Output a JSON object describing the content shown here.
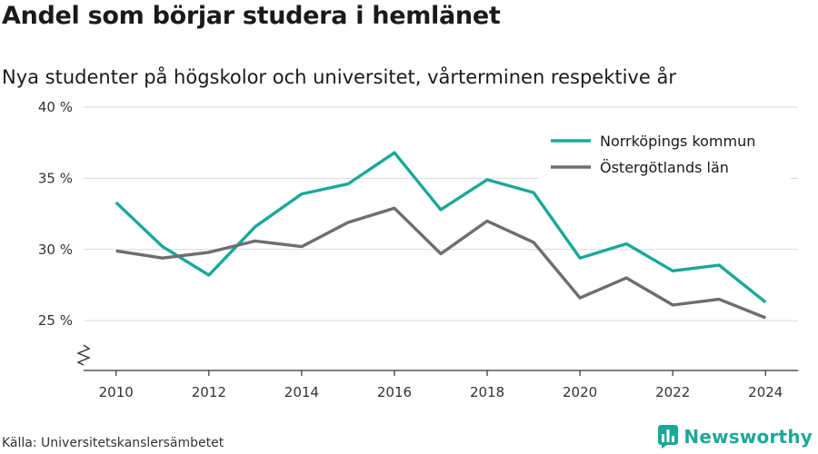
{
  "header": {
    "title": "Andel som börjar studera i hemlänet",
    "subtitle": "Nya studenter på högskolor och universitet, vårterminen respektive år"
  },
  "footer": {
    "source": "Källa: Universitetskanslersämbetet",
    "brand": "Newsworthy",
    "brand_icon": "bar-chart-logo-icon"
  },
  "colors": {
    "norrkoping": "#1aa89a",
    "ostergotland": "#6d6d72",
    "grid": "#d9d9d9",
    "axis": "#333333",
    "brand": "#1aa89a"
  },
  "chart_data": {
    "type": "line",
    "x": [
      2010,
      2011,
      2012,
      2013,
      2014,
      2015,
      2016,
      2017,
      2018,
      2019,
      2020,
      2021,
      2022,
      2023,
      2024
    ],
    "series": [
      {
        "name": "Norrköpings kommun",
        "values": [
          33.3,
          30.2,
          28.2,
          31.6,
          33.9,
          34.6,
          36.8,
          32.8,
          34.9,
          34.0,
          29.4,
          30.4,
          28.5,
          28.9,
          26.3
        ]
      },
      {
        "name": "Östergötlands län",
        "values": [
          29.9,
          29.4,
          29.8,
          30.6,
          30.2,
          31.9,
          32.9,
          29.7,
          32.0,
          30.5,
          26.6,
          28.0,
          26.1,
          26.5,
          25.2
        ]
      }
    ],
    "yticks": [
      25,
      30,
      35,
      40
    ],
    "ytick_labels": [
      "25 %",
      "30 %",
      "35 %",
      "40 %"
    ],
    "xticks": [
      2010,
      2012,
      2014,
      2016,
      2018,
      2020,
      2022,
      2024
    ],
    "xtick_labels": [
      "2010",
      "2012",
      "2014",
      "2016",
      "2018",
      "2020",
      "2022",
      "2024"
    ],
    "ylim": [
      21.5,
      40
    ],
    "xlim": [
      2009.3,
      2024.7
    ],
    "xlabel": "",
    "ylabel": "",
    "grid": true,
    "axis_break": true,
    "legend_position": "top-right"
  }
}
